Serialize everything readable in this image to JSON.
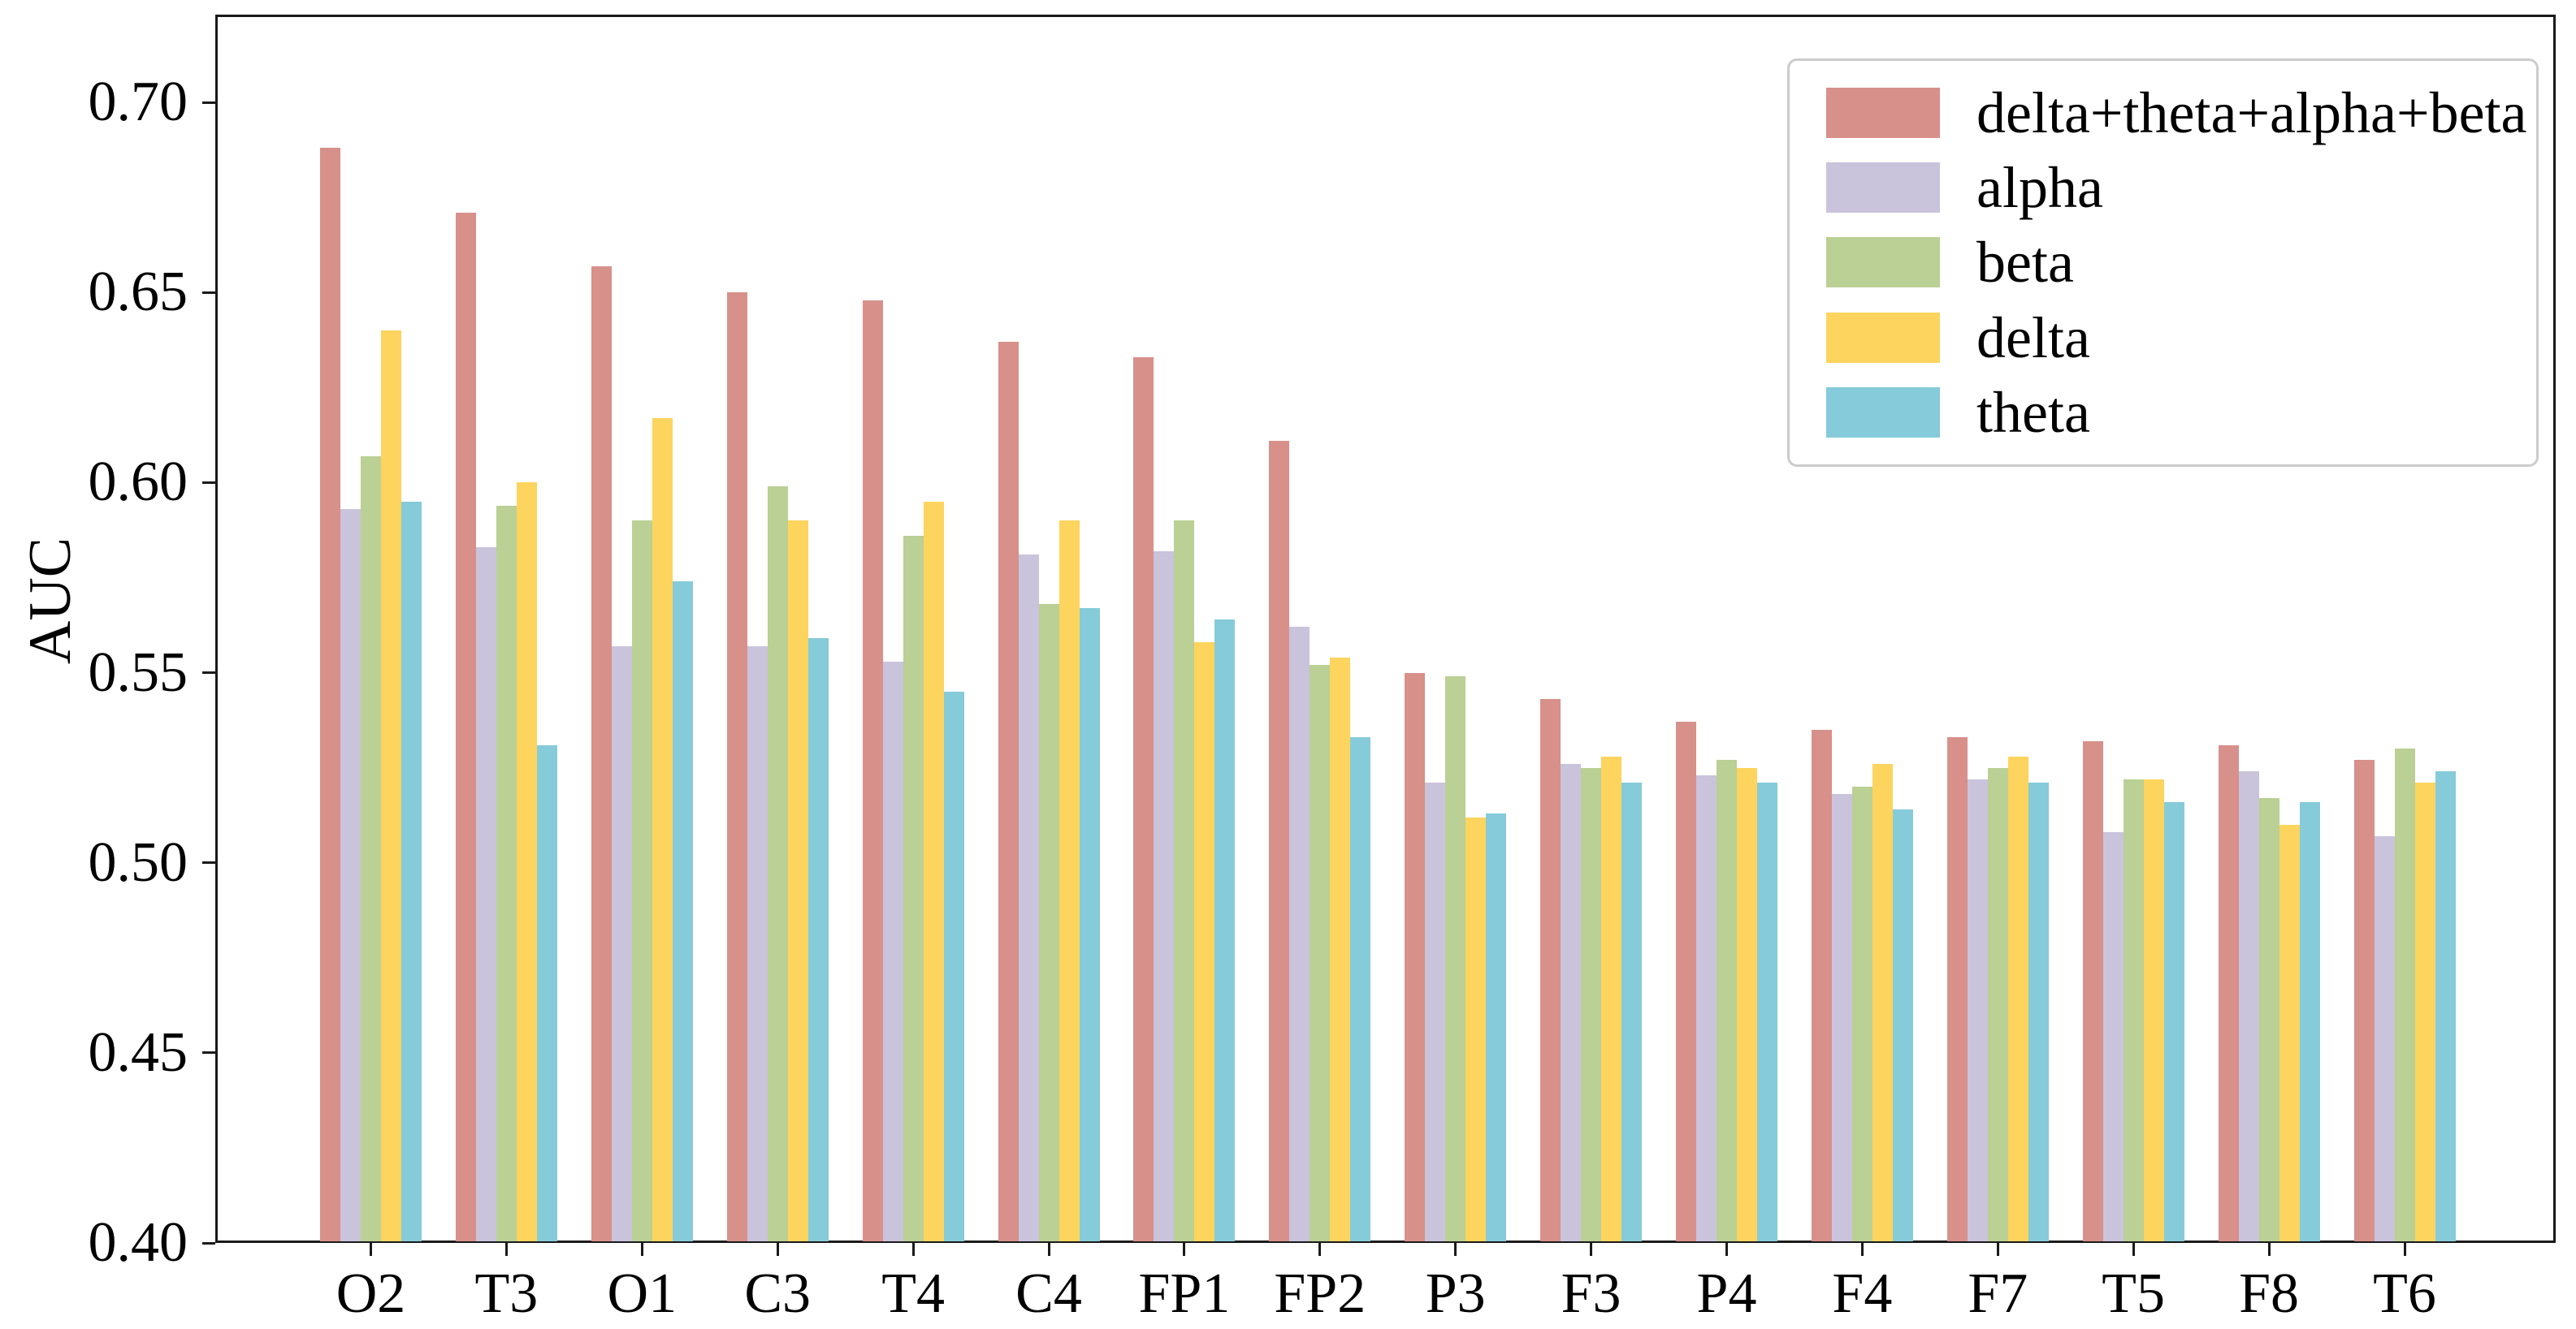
{
  "chart_data": {
    "type": "bar",
    "title": "",
    "xlabel": "",
    "ylabel": "AUC",
    "grid": false,
    "legend_position": "upper right",
    "ylim": [
      0.4,
      0.7231
    ],
    "yticks": [
      "0.40",
      "0.45",
      "0.50",
      "0.55",
      "0.60",
      "0.65",
      "0.70"
    ],
    "categories": [
      "O2",
      "T3",
      "O1",
      "C3",
      "T4",
      "C4",
      "FP1",
      "FP2",
      "P3",
      "F3",
      "P4",
      "F4",
      "F7",
      "T5",
      "F8",
      "T6"
    ],
    "series": [
      {
        "name": "delta+theta+alpha+beta",
        "color": "#d8908a",
        "values": [
          0.688,
          0.671,
          0.657,
          0.65,
          0.648,
          0.637,
          0.633,
          0.611,
          0.55,
          0.543,
          0.537,
          0.535,
          0.533,
          0.532,
          0.531,
          0.527
        ]
      },
      {
        "name": "alpha",
        "color": "#cac3dc",
        "values": [
          0.593,
          0.583,
          0.557,
          0.557,
          0.553,
          0.581,
          0.582,
          0.562,
          0.521,
          0.526,
          0.523,
          0.518,
          0.522,
          0.508,
          0.524,
          0.507
        ]
      },
      {
        "name": "beta",
        "color": "#bad094",
        "values": [
          0.607,
          0.594,
          0.59,
          0.599,
          0.586,
          0.568,
          0.59,
          0.552,
          0.549,
          0.525,
          0.527,
          0.52,
          0.525,
          0.522,
          0.517,
          0.53
        ]
      },
      {
        "name": "delta",
        "color": "#fdd45d",
        "values": [
          0.64,
          0.6,
          0.617,
          0.59,
          0.595,
          0.59,
          0.558,
          0.554,
          0.512,
          0.528,
          0.525,
          0.526,
          0.528,
          0.522,
          0.51,
          0.521
        ]
      },
      {
        "name": "theta",
        "color": "#86cbd9",
        "values": [
          0.595,
          0.531,
          0.574,
          0.559,
          0.545,
          0.567,
          0.564,
          0.533,
          0.513,
          0.521,
          0.521,
          0.514,
          0.521,
          0.516,
          0.516,
          0.524
        ]
      }
    ]
  }
}
